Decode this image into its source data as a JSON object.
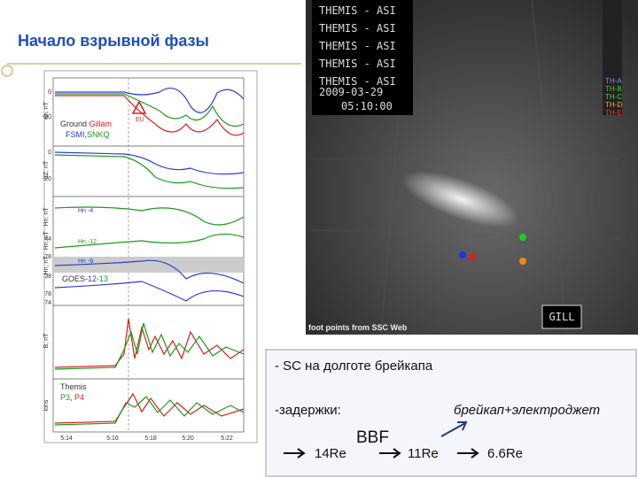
{
  "title": "Начало взрывной фазы",
  "left_plot": {
    "y_labels": [
      "dh, nT",
      "dZ, nT",
      "Hn, nT",
      "Hn, nT",
      "Hn, nT",
      "B, nT",
      "ions"
    ],
    "y_ticks": [
      "0",
      "-20",
      "0",
      "-20",
      "44",
      "78",
      "38",
      "78",
      "74"
    ],
    "legend": {
      "ground": "Ground",
      "station": "Gillam",
      "others1": "FSMI",
      "others2": "SNKQ",
      "goes_prefix": "GOES-",
      "goes1": "12",
      "goes2": "-13",
      "themis": "Themis",
      "p3": "P3",
      "p4": "P4",
      "onset": "EU"
    },
    "series_labels": [
      "Hn -4",
      "Hn -12",
      "Hn -9"
    ],
    "x_ticks": [
      "5:14",
      "5:16",
      "5:18",
      "5:20",
      "5:22"
    ]
  },
  "asi": {
    "headers": [
      "THEMIS - ASI",
      "THEMIS - ASI",
      "THEMIS - ASI",
      "THEMIS - ASI",
      "THEMIS - ASI"
    ],
    "date": "2009-03-29",
    "time": "05:10:00",
    "probes": [
      "TH-A",
      "TH-B",
      "TH-C",
      "TH-D",
      "TH-E"
    ],
    "station": "GILL",
    "footer": "foot points from SSC Web"
  },
  "notes": {
    "line1": "- SC на долготе брейкапа",
    "line2": "-задержки:",
    "line3": "брейкап+электроджет",
    "bbf": "BBF",
    "d1": "14Re",
    "d2": "11Re",
    "d3": "6.6Re"
  }
}
